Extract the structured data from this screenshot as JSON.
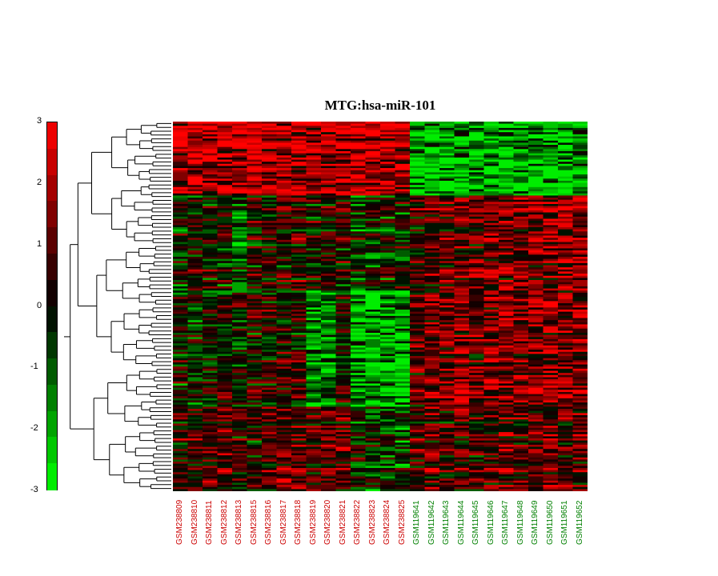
{
  "chart_data": {
    "type": "heatmap",
    "title": "MTG:hsa-miR-101",
    "colorbar": {
      "ticks": [
        "3",
        "2",
        "1",
        "0",
        "-1",
        "-2",
        "-3"
      ],
      "range": [
        -3,
        3
      ],
      "low_color": "#00ff00",
      "mid_color": "#000000",
      "high_color": "#ff0000"
    },
    "columns": [
      {
        "label": "GSM238809",
        "group": "red"
      },
      {
        "label": "GSM238810",
        "group": "red"
      },
      {
        "label": "GSM238811",
        "group": "red"
      },
      {
        "label": "GSM238812",
        "group": "red"
      },
      {
        "label": "GSM238813",
        "group": "red"
      },
      {
        "label": "GSM238815",
        "group": "red"
      },
      {
        "label": "GSM238816",
        "group": "red"
      },
      {
        "label": "GSM238817",
        "group": "red"
      },
      {
        "label": "GSM238818",
        "group": "red"
      },
      {
        "label": "GSM238819",
        "group": "red"
      },
      {
        "label": "GSM238820",
        "group": "red"
      },
      {
        "label": "GSM238821",
        "group": "red"
      },
      {
        "label": "GSM238822",
        "group": "red"
      },
      {
        "label": "GSM238823",
        "group": "red"
      },
      {
        "label": "GSM238824",
        "group": "red"
      },
      {
        "label": "GSM238825",
        "group": "red"
      },
      {
        "label": "GSM119641",
        "group": "green"
      },
      {
        "label": "GSM119642",
        "group": "green"
      },
      {
        "label": "GSM119643",
        "group": "green"
      },
      {
        "label": "GSM119644",
        "group": "green"
      },
      {
        "label": "GSM119645",
        "group": "green"
      },
      {
        "label": "GSM119646",
        "group": "green"
      },
      {
        "label": "GSM119647",
        "group": "green"
      },
      {
        "label": "GSM119648",
        "group": "green"
      },
      {
        "label": "GSM119649",
        "group": "green"
      },
      {
        "label": "GSM119650",
        "group": "green"
      },
      {
        "label": "GSM119651",
        "group": "green"
      },
      {
        "label": "GSM119652",
        "group": "green"
      }
    ],
    "group_colors": {
      "red": "#cc0000",
      "green": "#008000"
    },
    "row_blocks": [
      {
        "rows": 35,
        "pattern": [
          2.2,
          2.2,
          2.2,
          2.2,
          2.2,
          2.2,
          2.2,
          2.2,
          2.2,
          2.2,
          2.2,
          2.2,
          2.2,
          2.2,
          2.2,
          2.2,
          -2.2,
          -2.2,
          -2.2,
          -2.2,
          -2.2,
          -2.2,
          -2.2,
          -2.2,
          -2.2,
          -2.2,
          -2.2,
          -2.2
        ]
      },
      {
        "rows": 45,
        "pattern": [
          -0.3,
          0.3,
          0.2,
          0.1,
          -1.0,
          0.2,
          0.3,
          0.4,
          0.6,
          0.3,
          0.5,
          0.2,
          -0.5,
          -0.4,
          -0.3,
          -0.2,
          0.8,
          1.0,
          1.2,
          1.2,
          1.0,
          1.4,
          1.4,
          1.6,
          1.6,
          1.8,
          1.8,
          1.6
        ]
      },
      {
        "rows": 55,
        "pattern": [
          -0.2,
          -0.3,
          -0.1,
          0.2,
          0.0,
          0.1,
          0.2,
          0.5,
          0.4,
          -1.8,
          -1.8,
          0.3,
          -2.2,
          -2.4,
          -2.2,
          -2.4,
          1.2,
          1.4,
          1.2,
          1.8,
          1.0,
          1.6,
          1.6,
          1.4,
          1.6,
          1.8,
          1.4,
          1.6
        ]
      },
      {
        "rows": 40,
        "pattern": [
          0.4,
          0.6,
          1.0,
          1.0,
          0.6,
          0.4,
          0.8,
          1.4,
          1.2,
          0.8,
          1.2,
          1.0,
          0.2,
          -0.6,
          -0.4,
          -0.8,
          0.8,
          1.2,
          0.8,
          1.0,
          0.6,
          1.0,
          1.2,
          1.0,
          1.2,
          1.2,
          0.8,
          1.0
        ]
      }
    ]
  }
}
